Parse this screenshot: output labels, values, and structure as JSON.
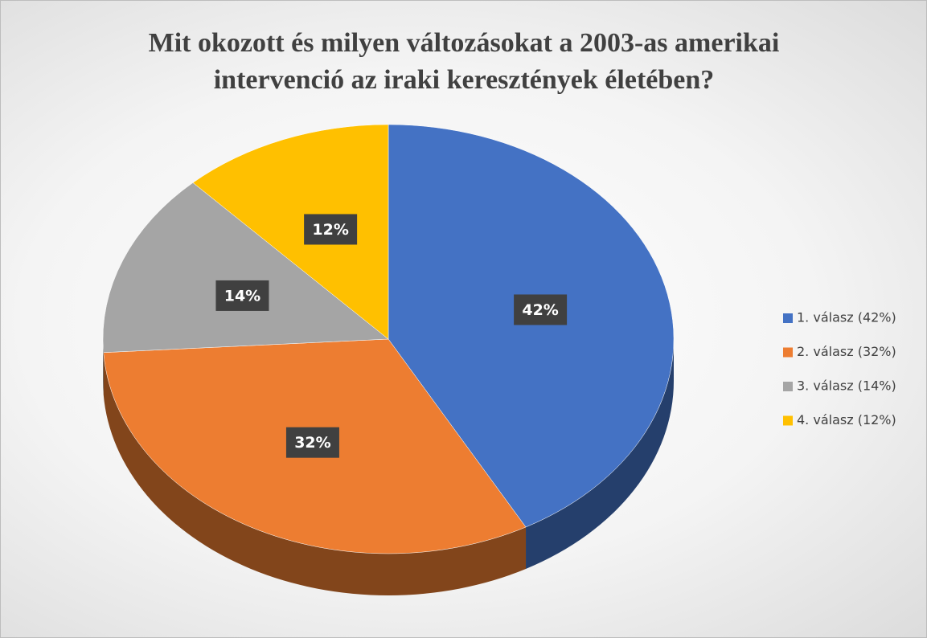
{
  "chart_data": {
    "type": "pie",
    "title": "Mit okozott és milyen változásokat a 2003-as amerikai intervenció az iraki keresztények életében?",
    "categories": [
      "1. válasz (42%)",
      "2. válasz (32%)",
      "3. válasz (14%)",
      "4. válasz (12%)"
    ],
    "values": [
      42,
      32,
      14,
      12
    ],
    "value_labels": [
      "42%",
      "32%",
      "14%",
      "12%"
    ],
    "colors": [
      "#4472c4",
      "#ed7d31",
      "#a5a5a5",
      "#ffc000"
    ],
    "legend": "right"
  }
}
